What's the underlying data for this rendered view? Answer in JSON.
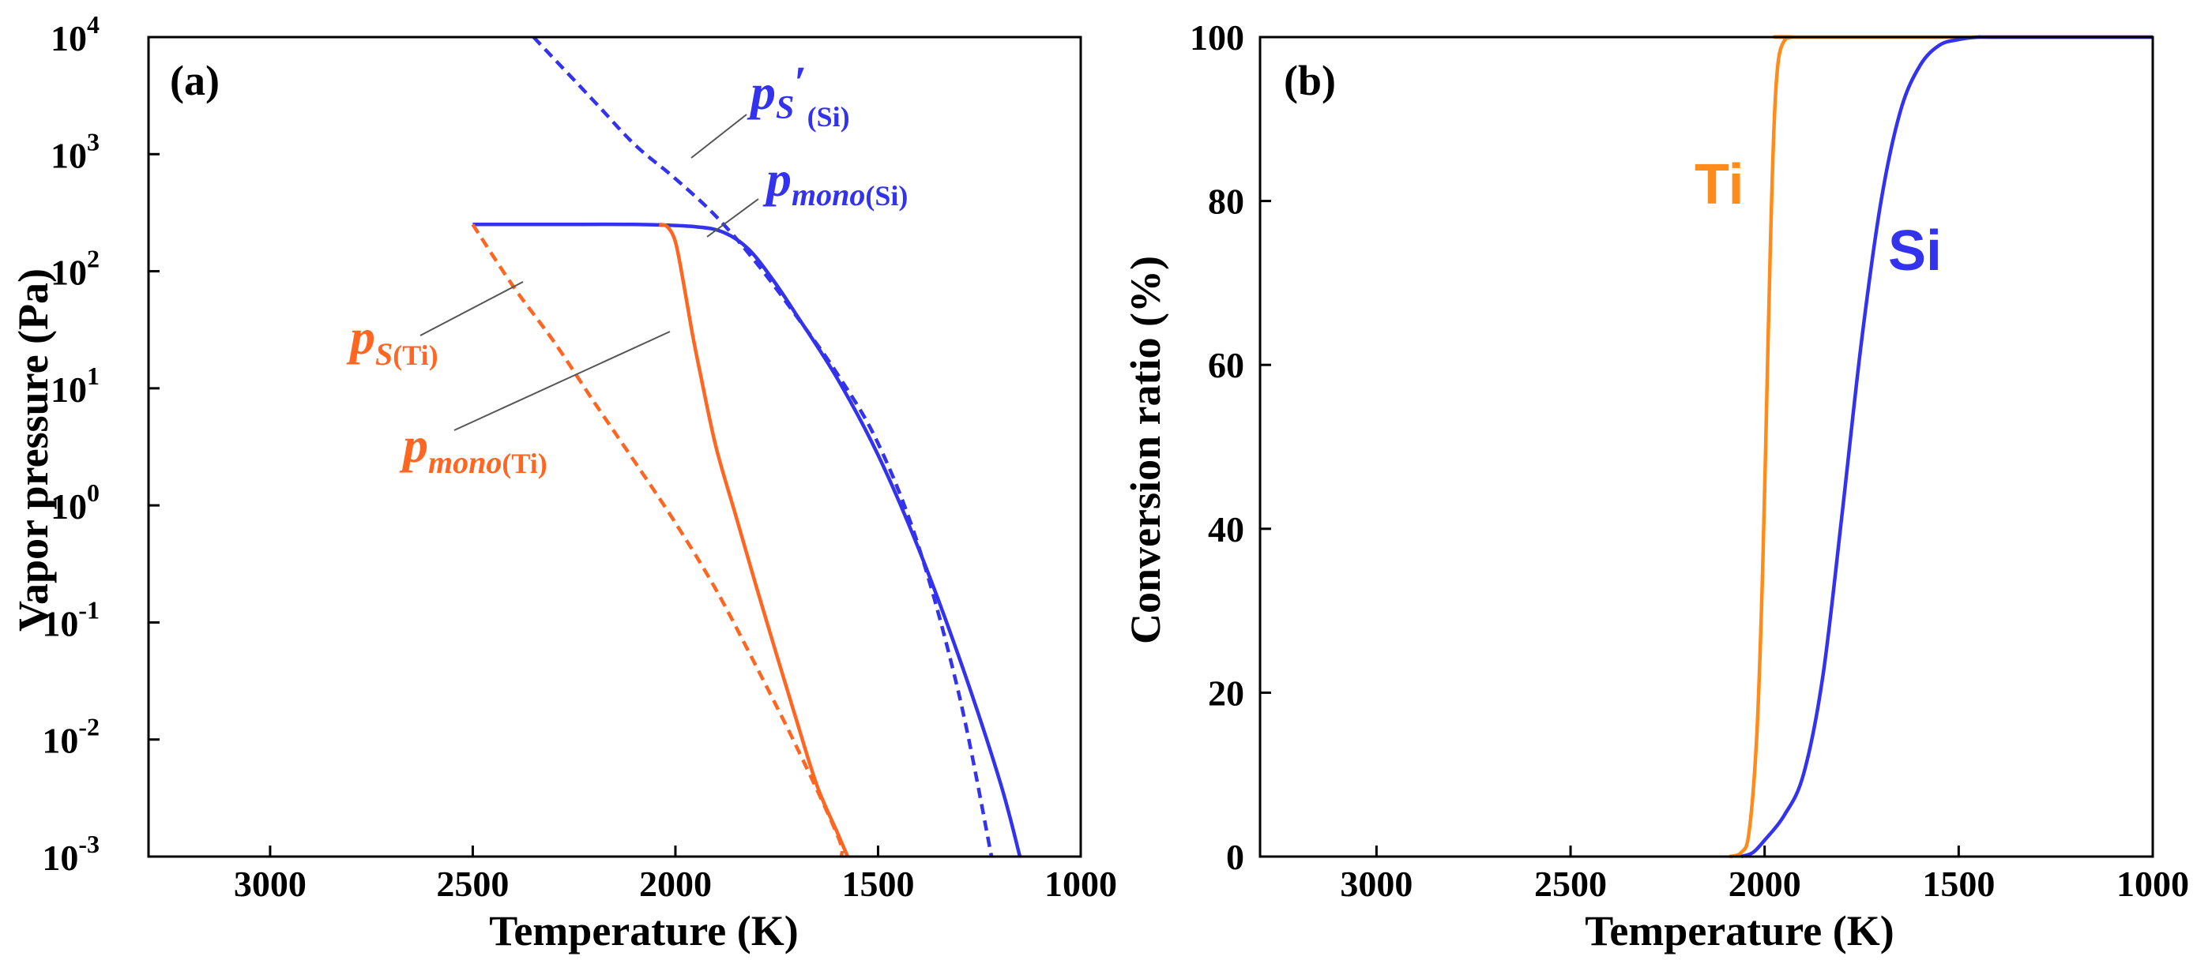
{
  "colors": {
    "blue": "#3333EE",
    "orange": "#FF6622",
    "ti_orange": "#FF8C1A",
    "axis": "#000000"
  },
  "chart_data": [
    {
      "panel": "(a)",
      "type": "line",
      "xlabel": "Temperature (K)",
      "ylabel": "Vapor pressure (Pa)",
      "xlim": [
        3300,
        1000
      ],
      "x_reversed": true,
      "ylim_log10": [
        -3,
        4
      ],
      "y_scale": "log",
      "x_ticks": [
        3000,
        2500,
        2000,
        1500,
        1000
      ],
      "y_ticks": [
        {
          "exp": -3,
          "base": "10",
          "sup": "-3"
        },
        {
          "exp": -2,
          "base": "10",
          "sup": "-2"
        },
        {
          "exp": -1,
          "base": "10",
          "sup": "-1"
        },
        {
          "exp": 0,
          "base": "10",
          "sup": "0"
        },
        {
          "exp": 1,
          "base": "10",
          "sup": "1"
        },
        {
          "exp": 2,
          "base": "10",
          "sup": "2"
        },
        {
          "exp": 3,
          "base": "10",
          "sup": "3"
        },
        {
          "exp": 4,
          "base": "10",
          "sup": "4"
        }
      ],
      "series": [
        {
          "name": "p_mono(Si)",
          "color": "blue",
          "dash": false,
          "x": [
            2500,
            2300,
            2100,
            1950,
            1880,
            1820,
            1760,
            1700,
            1600,
            1500,
            1400,
            1300,
            1200,
            1150
          ],
          "log10y": [
            2.4,
            2.4,
            2.4,
            2.38,
            2.33,
            2.19,
            1.93,
            1.62,
            1.08,
            0.43,
            -0.37,
            -1.3,
            -2.35,
            -3.0
          ]
        },
        {
          "name": "p_S'(Si)",
          "color": "blue",
          "dash": true,
          "x": [
            2350,
            2200,
            2100,
            2000,
            1900,
            1800,
            1700,
            1600,
            1500,
            1400,
            1300,
            1220
          ],
          "log10y": [
            4.0,
            3.45,
            3.08,
            2.79,
            2.47,
            2.07,
            1.61,
            1.12,
            0.53,
            -0.35,
            -1.62,
            -3.0
          ]
        },
        {
          "name": "p_mono(Ti)",
          "color": "orange",
          "dash": false,
          "x": [
            2040,
            2020,
            2000,
            1980,
            1960,
            1940,
            1900,
            1850,
            1800,
            1750,
            1700,
            1650,
            1600,
            1575
          ],
          "log10y": [
            2.4,
            2.38,
            2.25,
            1.9,
            1.5,
            1.15,
            0.5,
            -0.1,
            -0.7,
            -1.28,
            -1.85,
            -2.4,
            -2.8,
            -3.0
          ]
        },
        {
          "name": "p_S(Ti)",
          "color": "orange",
          "dash": true,
          "x": [
            2500,
            2400,
            2300,
            2200,
            2100,
            2000,
            1900,
            1800,
            1700,
            1600,
            1590
          ],
          "log10y": [
            2.4,
            1.87,
            1.4,
            0.88,
            0.37,
            -0.15,
            -0.72,
            -1.38,
            -2.07,
            -2.82,
            -3.0
          ]
        }
      ],
      "annotations": [
        {
          "id": "ps_si",
          "text_main": "p",
          "sub": "S",
          "prime": "′",
          "sub2": "(Si)"
        },
        {
          "id": "pmono_si",
          "text_main": "p",
          "sub": "mono",
          "sub2": "(Si)"
        },
        {
          "id": "ps_ti",
          "text_main": "p",
          "sub": "S",
          "sub2": "(Ti)"
        },
        {
          "id": "pmono_ti",
          "text_main": "p",
          "sub": "mono",
          "sub2": "(Ti)"
        }
      ]
    },
    {
      "panel": "(b)",
      "type": "line",
      "xlabel": "Temperature (K)",
      "ylabel": "Conversion ratio (%)",
      "xlim": [
        3300,
        1000
      ],
      "x_reversed": true,
      "ylim": [
        0,
        100
      ],
      "x_ticks": [
        3000,
        2500,
        2000,
        1500,
        1000
      ],
      "y_ticks": [
        0,
        20,
        40,
        60,
        80,
        100
      ],
      "series": [
        {
          "name": "Ti",
          "label": "Ti",
          "color": "ti_orange",
          "x": [
            2090,
            2060,
            2040,
            2020,
            2005,
            1995,
            1985,
            1975,
            1965,
            1950,
            1930,
            1900,
            1000
          ],
          "y": [
            0,
            0.5,
            3,
            15,
            35,
            55,
            75,
            90,
            97,
            99.5,
            100,
            100,
            100
          ]
        },
        {
          "name": "Si",
          "label": "Si",
          "color": "blue",
          "x": [
            2060,
            2030,
            2000,
            1950,
            1900,
            1850,
            1800,
            1750,
            1700,
            1650,
            1600,
            1550,
            1500,
            1450,
            1400,
            1000
          ],
          "y": [
            0,
            0.5,
            2,
            5,
            10,
            22,
            42,
            63,
            80,
            91,
            96.5,
            99,
            99.7,
            100,
            100,
            100
          ]
        }
      ]
    }
  ]
}
